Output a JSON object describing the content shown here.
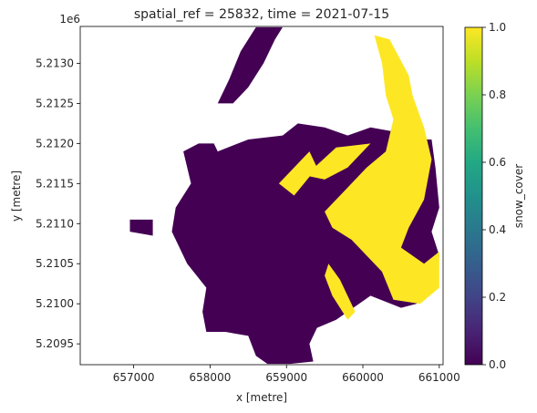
{
  "chart_data": {
    "type": "heatmap",
    "title": "spatial_ref = 25832, time = 2021-07-15",
    "xlabel": "x [metre]",
    "ylabel": "y [metre]",
    "y_offset_label": "1e6",
    "xlim": [
      656300,
      661050
    ],
    "ylim": [
      5209240,
      5213460
    ],
    "x_ticks": [
      {
        "value": 657000,
        "label": "657000"
      },
      {
        "value": 658000,
        "label": "658000"
      },
      {
        "value": 659000,
        "label": "659000"
      },
      {
        "value": 660000,
        "label": "660000"
      },
      {
        "value": 661000,
        "label": "661000"
      }
    ],
    "y_ticks": [
      {
        "value": 5209500,
        "label": "5.2095"
      },
      {
        "value": 5210000,
        "label": "5.2100"
      },
      {
        "value": 5210500,
        "label": "5.2105"
      },
      {
        "value": 5211000,
        "label": "5.2110"
      },
      {
        "value": 5211500,
        "label": "5.2115"
      },
      {
        "value": 5212000,
        "label": "5.2120"
      },
      {
        "value": 5212500,
        "label": "5.2125"
      },
      {
        "value": 5213000,
        "label": "5.2130"
      }
    ],
    "colorbar": {
      "label": "snow_cover",
      "colormap": "viridis",
      "range": [
        0,
        1
      ],
      "ticks": [
        {
          "value": 0.0,
          "label": "0.0"
        },
        {
          "value": 0.2,
          "label": "0.2"
        },
        {
          "value": 0.4,
          "label": "0.4"
        },
        {
          "value": 0.6,
          "label": "0.6"
        },
        {
          "value": 0.8,
          "label": "0.8"
        },
        {
          "value": 1.0,
          "label": "1.0"
        }
      ]
    },
    "classes": [
      {
        "value": 0.0,
        "color": "#440154"
      },
      {
        "value": 1.0,
        "color": "#fde725"
      }
    ],
    "regions": [
      {
        "value": 0,
        "coords": [
          [
            657850,
            5212000
          ],
          [
            658050,
            5212000
          ],
          [
            658100,
            5211900
          ],
          [
            658500,
            5212050
          ],
          [
            658950,
            5212100
          ],
          [
            659150,
            5212250
          ],
          [
            659500,
            5212200
          ],
          [
            659800,
            5212100
          ],
          [
            660100,
            5212200
          ],
          [
            660400,
            5212150
          ],
          [
            660600,
            5212050
          ],
          [
            660900,
            5212050
          ],
          [
            660950,
            5211700
          ],
          [
            661000,
            5211200
          ],
          [
            660900,
            5210900
          ],
          [
            661000,
            5210600
          ],
          [
            660950,
            5210200
          ],
          [
            660700,
            5210000
          ],
          [
            660500,
            5209950
          ],
          [
            660100,
            5210100
          ],
          [
            659950,
            5210000
          ],
          [
            659650,
            5209800
          ],
          [
            659400,
            5209700
          ],
          [
            659300,
            5209500
          ],
          [
            659350,
            5209280
          ],
          [
            659050,
            5209250
          ],
          [
            658750,
            5209250
          ],
          [
            658600,
            5209350
          ],
          [
            658500,
            5209600
          ],
          [
            658200,
            5209650
          ],
          [
            657950,
            5209650
          ],
          [
            657900,
            5209900
          ],
          [
            657950,
            5210200
          ],
          [
            657700,
            5210500
          ],
          [
            657500,
            5210900
          ],
          [
            657550,
            5211200
          ],
          [
            657750,
            5211500
          ],
          [
            657650,
            5211900
          ]
        ]
      },
      {
        "value": 0,
        "coords": [
          [
            658100,
            5212500
          ],
          [
            658300,
            5212500
          ],
          [
            658500,
            5212700
          ],
          [
            658700,
            5213000
          ],
          [
            658850,
            5213300
          ],
          [
            658950,
            5213450
          ],
          [
            658600,
            5213450
          ],
          [
            658400,
            5213150
          ],
          [
            658250,
            5212800
          ]
        ]
      },
      {
        "value": 0,
        "coords": [
          [
            656950,
            5211050
          ],
          [
            657250,
            5211050
          ],
          [
            657250,
            5210850
          ],
          [
            656950,
            5210900
          ]
        ]
      },
      {
        "value": 1,
        "coords": [
          [
            659250,
            5211600
          ],
          [
            659650,
            5211950
          ],
          [
            660100,
            5212000
          ],
          [
            659800,
            5211700
          ],
          [
            659500,
            5211550
          ]
        ]
      },
      {
        "value": 1,
        "coords": [
          [
            659100,
            5211350
          ],
          [
            659400,
            5211700
          ],
          [
            659300,
            5211900
          ],
          [
            658900,
            5211500
          ]
        ]
      },
      {
        "value": 1,
        "coords": [
          [
            660150,
            5213350
          ],
          [
            660350,
            5213300
          ],
          [
            660600,
            5212850
          ],
          [
            660650,
            5212600
          ],
          [
            660800,
            5212200
          ],
          [
            660900,
            5211800
          ],
          [
            660800,
            5211300
          ],
          [
            660600,
            5210950
          ],
          [
            660500,
            5210700
          ],
          [
            660800,
            5210500
          ],
          [
            661000,
            5210650
          ],
          [
            661000,
            5210200
          ],
          [
            660750,
            5210000
          ],
          [
            660400,
            5210050
          ],
          [
            660250,
            5210400
          ],
          [
            659850,
            5210800
          ],
          [
            659600,
            5210950
          ],
          [
            659500,
            5211150
          ],
          [
            659800,
            5211450
          ],
          [
            660050,
            5211700
          ],
          [
            660300,
            5211900
          ],
          [
            660400,
            5212300
          ],
          [
            660300,
            5212600
          ],
          [
            660250,
            5213000
          ]
        ]
      },
      {
        "value": 1,
        "coords": [
          [
            659550,
            5210500
          ],
          [
            659700,
            5210300
          ],
          [
            659900,
            5209900
          ],
          [
            659800,
            5209800
          ],
          [
            659600,
            5210100
          ],
          [
            659500,
            5210350
          ]
        ]
      }
    ]
  }
}
